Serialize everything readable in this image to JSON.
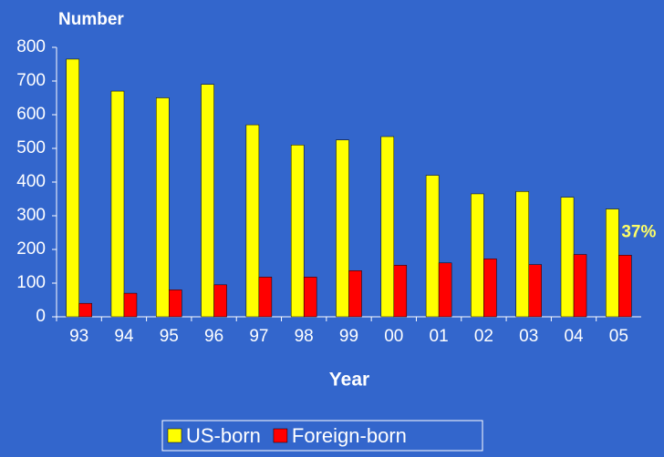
{
  "chart_data": {
    "type": "bar",
    "y_label": "Number",
    "x_label": "Year",
    "categories": [
      "93",
      "94",
      "95",
      "96",
      "97",
      "98",
      "99",
      "00",
      "01",
      "02",
      "03",
      "04",
      "05"
    ],
    "series": [
      {
        "name": "US-born",
        "color": "#ffff00",
        "values": [
          765,
          670,
          650,
          690,
          570,
          510,
          525,
          535,
          420,
          365,
          372,
          355,
          320
        ]
      },
      {
        "name": "Foreign-born",
        "color": "#ff0000",
        "values": [
          40,
          70,
          80,
          95,
          118,
          118,
          137,
          153,
          160,
          172,
          155,
          185,
          183
        ]
      }
    ],
    "ylim": [
      0,
      800
    ],
    "yticks": [
      0,
      100,
      200,
      300,
      400,
      500,
      600,
      700,
      800
    ],
    "annotation": "37%",
    "annotation_color": "#ffff66",
    "legend": "bottom"
  }
}
